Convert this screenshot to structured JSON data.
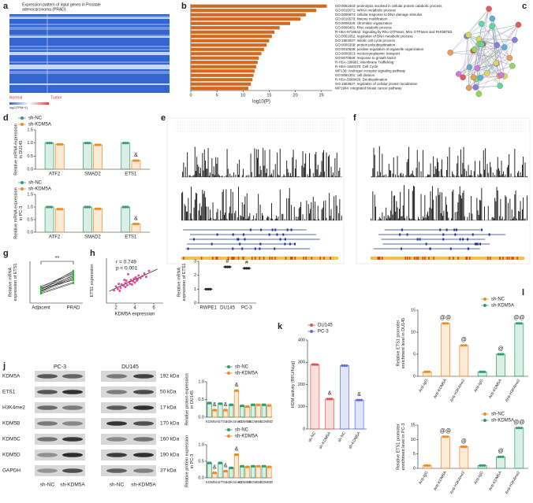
{
  "figure": {
    "letters": [
      "a",
      "b",
      "c",
      "d",
      "e",
      "f",
      "g",
      "h",
      "i",
      "j",
      "k",
      "l"
    ],
    "heatmap": {
      "title": [
        "Expression pattern of input genes in Prostate",
        "adenocarcinoma (PRAD)"
      ],
      "groups": [
        "Normal",
        "Tumor"
      ],
      "legend": "log2(TPM+1)"
    },
    "blot": {
      "cell_lines": [
        "PC-3",
        "DU145"
      ],
      "proteins": [
        "KDM5A",
        "ETS1",
        "H3K4me2",
        "KDM5B",
        "KDM5C",
        "KDM5D",
        "GAPDH"
      ],
      "sizes": [
        "192 kDa",
        "50 kDa",
        "17 kDa",
        "170 kDa",
        "160 kDa",
        "190 kDa",
        "37 kDa"
      ],
      "groups": [
        "sh-NC",
        "sh-KDM5A"
      ]
    }
  },
  "chart_data": [
    {
      "type": "hbar",
      "categories": [
        "GO:0051603: proteolysis involved in cellular protein catabolic process",
        "GO:0016071: mRNA metabolic process",
        "GO:0006974: cellular response to DNA damage stimulus",
        "GO:0016570: histone modification",
        "GO:0006325: chromatin organization",
        "GO:0006401: RNA catabolic process",
        "R-HSA-9716542: Signaling by Rho GTPases, Miro GTPases and RHOBTB3",
        "GO:0051052: regulation of DNA metabolic process",
        "GO:1903047: mitotic cell cycle process",
        "GO:0000209: protein polyubiquitination",
        "GO:0010638: positive regulation of organelle organization",
        "GO:0006913: nucleocytoplasmic transport",
        "GO:0070848: response to growth factor",
        "R-HSA-199991: Membrane Trafficking",
        "R-HSA-1640170: Cell Cycle",
        "WP138: Androgen receptor signaling pathway",
        "GO:0051301: cell division",
        "R-HSA-5688426: Deubiquitination",
        "GO:1903827: regulation of cellular protein localization",
        "WP1984: Integrated breast cancer pathway"
      ],
      "values": [
        26,
        24,
        22,
        21,
        19,
        17,
        16,
        15.5,
        15,
        14.5,
        14,
        13.5,
        13,
        12.8,
        12.5,
        12.2,
        12,
        11.8,
        11.5,
        11
      ],
      "color": "#d2691e",
      "xlim": [
        0,
        27
      ],
      "xticks": [
        0,
        5,
        10,
        15,
        20,
        25
      ],
      "xlabel": "log10(P)"
    },
    {
      "type": "bar",
      "categories": [
        "ATF2",
        "SMAD2",
        "ETS1"
      ],
      "series": [
        {
          "name": "sh-NC",
          "color": "#2e9e6b",
          "values": [
            1,
            1,
            1
          ]
        },
        {
          "name": "sh-KDM5A",
          "color": "#f08a24",
          "values": [
            0.95,
            0.93,
            0.33
          ],
          "annotations": [
            null,
            null,
            "&"
          ]
        }
      ],
      "ylim": [
        0,
        1.5
      ],
      "yticks": [
        {
          "value": 0,
          "label": "0.0"
        },
        0.5,
        {
          "value": 1,
          "label": "1.0"
        },
        1.5
      ],
      "ylabel": [
        "Relative mRNA expression",
        "in DU145"
      ]
    },
    {
      "type": "bar",
      "categories": [
        "ATF2",
        "SMAD2",
        "ETS1"
      ],
      "series": [
        {
          "name": "sh-NC",
          "color": "#2e9e6b",
          "values": [
            1,
            1,
            1
          ]
        },
        {
          "name": "sh-KDM5A",
          "color": "#f08a24",
          "values": [
            0.92,
            0.93,
            0.33
          ],
          "annotations": [
            null,
            null,
            "&"
          ]
        }
      ],
      "ylim": [
        0,
        1.5
      ],
      "yticks": [
        {
          "value": 0,
          "label": "0.0"
        },
        0.5,
        {
          "value": 1,
          "label": "1.0"
        },
        1.5
      ],
      "ylabel": [
        "Relative mRNA expression",
        "in PC-3"
      ]
    },
    {
      "type": "paired",
      "categories": [
        "Adjacent",
        "PRAD"
      ],
      "pairs": [
        [
          0.55,
          1.35
        ],
        [
          0.6,
          1.2
        ],
        [
          0.65,
          1.45
        ],
        [
          0.7,
          1.1
        ],
        [
          0.5,
          1.0
        ],
        [
          0.75,
          1.5
        ],
        [
          0.6,
          1.25
        ],
        [
          0.8,
          1.4
        ],
        [
          0.45,
          0.95
        ],
        [
          0.7,
          1.3
        ],
        [
          0.55,
          1.15
        ],
        [
          0.65,
          1.55
        ]
      ],
      "ylim": [
        0,
        2
      ],
      "ylabel": [
        "Relative mRNA",
        "expression of ETS1"
      ],
      "annotation": "**"
    },
    {
      "type": "scatter",
      "x": [
        1.8,
        2.0,
        2.2,
        2.3,
        2.5,
        2.6,
        2.8,
        3.0,
        3.1,
        3.2,
        3.4,
        3.5,
        3.6,
        3.8,
        3.9,
        4.0,
        4.1,
        4.3,
        4.4,
        4.6,
        4.8,
        5.0,
        5.2,
        5.5,
        2.4,
        3.3,
        3.7,
        4.2,
        2.9,
        3.0
      ],
      "values": [
        2.0,
        2.6,
        2.2,
        3.0,
        2.4,
        2.9,
        2.7,
        3.1,
        3.5,
        2.8,
        3.3,
        3.0,
        3.6,
        3.4,
        3.8,
        3.2,
        4.0,
        3.7,
        4.3,
        3.9,
        4.2,
        4.6,
        4.1,
        5.0,
        1.9,
        4.5,
        2.9,
        3.5,
        3.6,
        2.5
      ],
      "color": "#d63384",
      "xlim": [
        1,
        7
      ],
      "ylim": [
        0,
        7
      ],
      "xticks": [
        2,
        4,
        6
      ],
      "xlabel": "KDM5A expression",
      "ylabel": [
        "ETS1 expression"
      ],
      "stats": [
        "r = 0.749",
        "p < 0.001"
      ]
    },
    {
      "type": "dot",
      "categories": [
        "RWPE1",
        "DU145",
        "PC-3"
      ],
      "values": [
        1,
        2.6,
        2.5
      ],
      "annotations": [
        null,
        "#",
        "#"
      ],
      "color": "#222222",
      "ylim": [
        0,
        3
      ],
      "yticks": [
        0,
        1,
        2,
        3
      ],
      "ylabel": [
        "Relative mRNA",
        "expression of ETS1"
      ]
    },
    {
      "type": "bar",
      "categories": [
        "KDM5A",
        "ETS1",
        "H3K4me2",
        "KDM5B",
        "KDM5C",
        "KDM5D"
      ],
      "series": [
        {
          "name": "sh-NC",
          "color": "#2e9e6b",
          "values": [
            0.4,
            0.38,
            0.35,
            0.32,
            0.35,
            0.35
          ]
        },
        {
          "name": "sh-KDM5A",
          "color": "#f08a24",
          "values": [
            0.2,
            0.2,
            0.75,
            0.3,
            0.35,
            0.33
          ],
          "annotations": [
            "&",
            "&",
            "&",
            null,
            null,
            null
          ]
        }
      ],
      "ylim": [
        0,
        1
      ],
      "yticks": [
        {
          "value": 0,
          "label": "0.0"
        },
        0.5,
        {
          "value": 1,
          "label": "1.0"
        }
      ],
      "ylabel": [
        "Relative protein expression",
        "in DU145"
      ]
    },
    {
      "type": "bar",
      "categories": [
        "KDM5A",
        "ETS1",
        "H3K4me2",
        "KDM5B",
        "KDM5C",
        "KDM5D"
      ],
      "series": [
        {
          "name": "sh-NC",
          "color": "#2e9e6b",
          "values": [
            0.45,
            0.45,
            0.3,
            0.35,
            0.35,
            0.35
          ]
        },
        {
          "name": "sh-KDM5A",
          "color": "#f08a24",
          "values": [
            0.15,
            0.2,
            0.7,
            0.33,
            0.35,
            0.33
          ],
          "annotations": [
            "&",
            "&",
            "&",
            null,
            null,
            null
          ]
        }
      ],
      "ylim": [
        0,
        1
      ],
      "yticks": [
        {
          "value": 0,
          "label": "0.0"
        },
        0.5,
        {
          "value": 1,
          "label": "1.0"
        }
      ],
      "ylabel": [
        "Relative protein expression",
        "in PC-3"
      ]
    },
    {
      "type": "bar",
      "categories": [
        "sh-NC",
        "sh-KDM5A",
        "sh-NC",
        "sh-KDM5A"
      ],
      "series": [
        {
          "name": "DU145",
          "color": "#e0524f",
          "values": [
            290,
            135,
            null,
            null
          ],
          "annotations": [
            null,
            "&",
            null,
            null
          ]
        },
        {
          "name": "PC-3",
          "color": "#5b6ee1",
          "values": [
            null,
            null,
            285,
            130
          ],
          "annotations": [
            null,
            null,
            null,
            "&"
          ]
        }
      ],
      "ylim": [
        0,
        400
      ],
      "yticks": [
        0,
        100,
        200,
        300,
        400
      ],
      "ylabel": [
        "HDM activity (RFU/h/µg)"
      ]
    },
    {
      "type": "bar",
      "categories": [
        "Anti-IgG",
        "Anti-KDM5A",
        "Anti-H3K4me2",
        "Anti-IgG",
        "Anti-KDM5A",
        "Anti-H3K4me2"
      ],
      "series": [
        {
          "name": "sh-NC",
          "color": "#f08a24",
          "values": [
            1,
            12,
            7,
            null,
            null,
            null
          ],
          "annotations": [
            null,
            "@@",
            "@",
            null,
            null,
            null
          ]
        },
        {
          "name": "sh-KDM5A",
          "color": "#2e9e6b",
          "values": [
            null,
            null,
            null,
            1,
            5,
            12
          ],
          "annotations": [
            null,
            null,
            null,
            null,
            "@",
            "@@"
          ]
        }
      ],
      "ylim": [
        0,
        15
      ],
      "yticks": [
        0,
        5,
        10,
        15
      ],
      "ylabel": [
        "Relative ETS1 promoter",
        "enrichment level in DU145"
      ]
    },
    {
      "type": "bar",
      "categories": [
        "Anti-IgG",
        "Anti-KDM5A",
        "Anti-H3K4me2",
        "Anti-IgG",
        "Anti-KDM5A",
        "Anti-H3K4me2"
      ],
      "series": [
        {
          "name": "sh-NC",
          "color": "#f08a24",
          "values": [
            1,
            11,
            7.5,
            null,
            null,
            null
          ],
          "annotations": [
            null,
            "@@",
            "@",
            null,
            null,
            null
          ]
        },
        {
          "name": "sh-KDM5A",
          "color": "#2e9e6b",
          "values": [
            null,
            null,
            null,
            1,
            4,
            14
          ],
          "annotations": [
            null,
            null,
            null,
            null,
            "@",
            "@@"
          ]
        }
      ],
      "ylim": [
        0,
        15
      ],
      "yticks": [
        0,
        5,
        10,
        15
      ],
      "ylabel": [
        "Relative ETS1 promoter",
        "enrichment level in PC-3"
      ]
    }
  ]
}
